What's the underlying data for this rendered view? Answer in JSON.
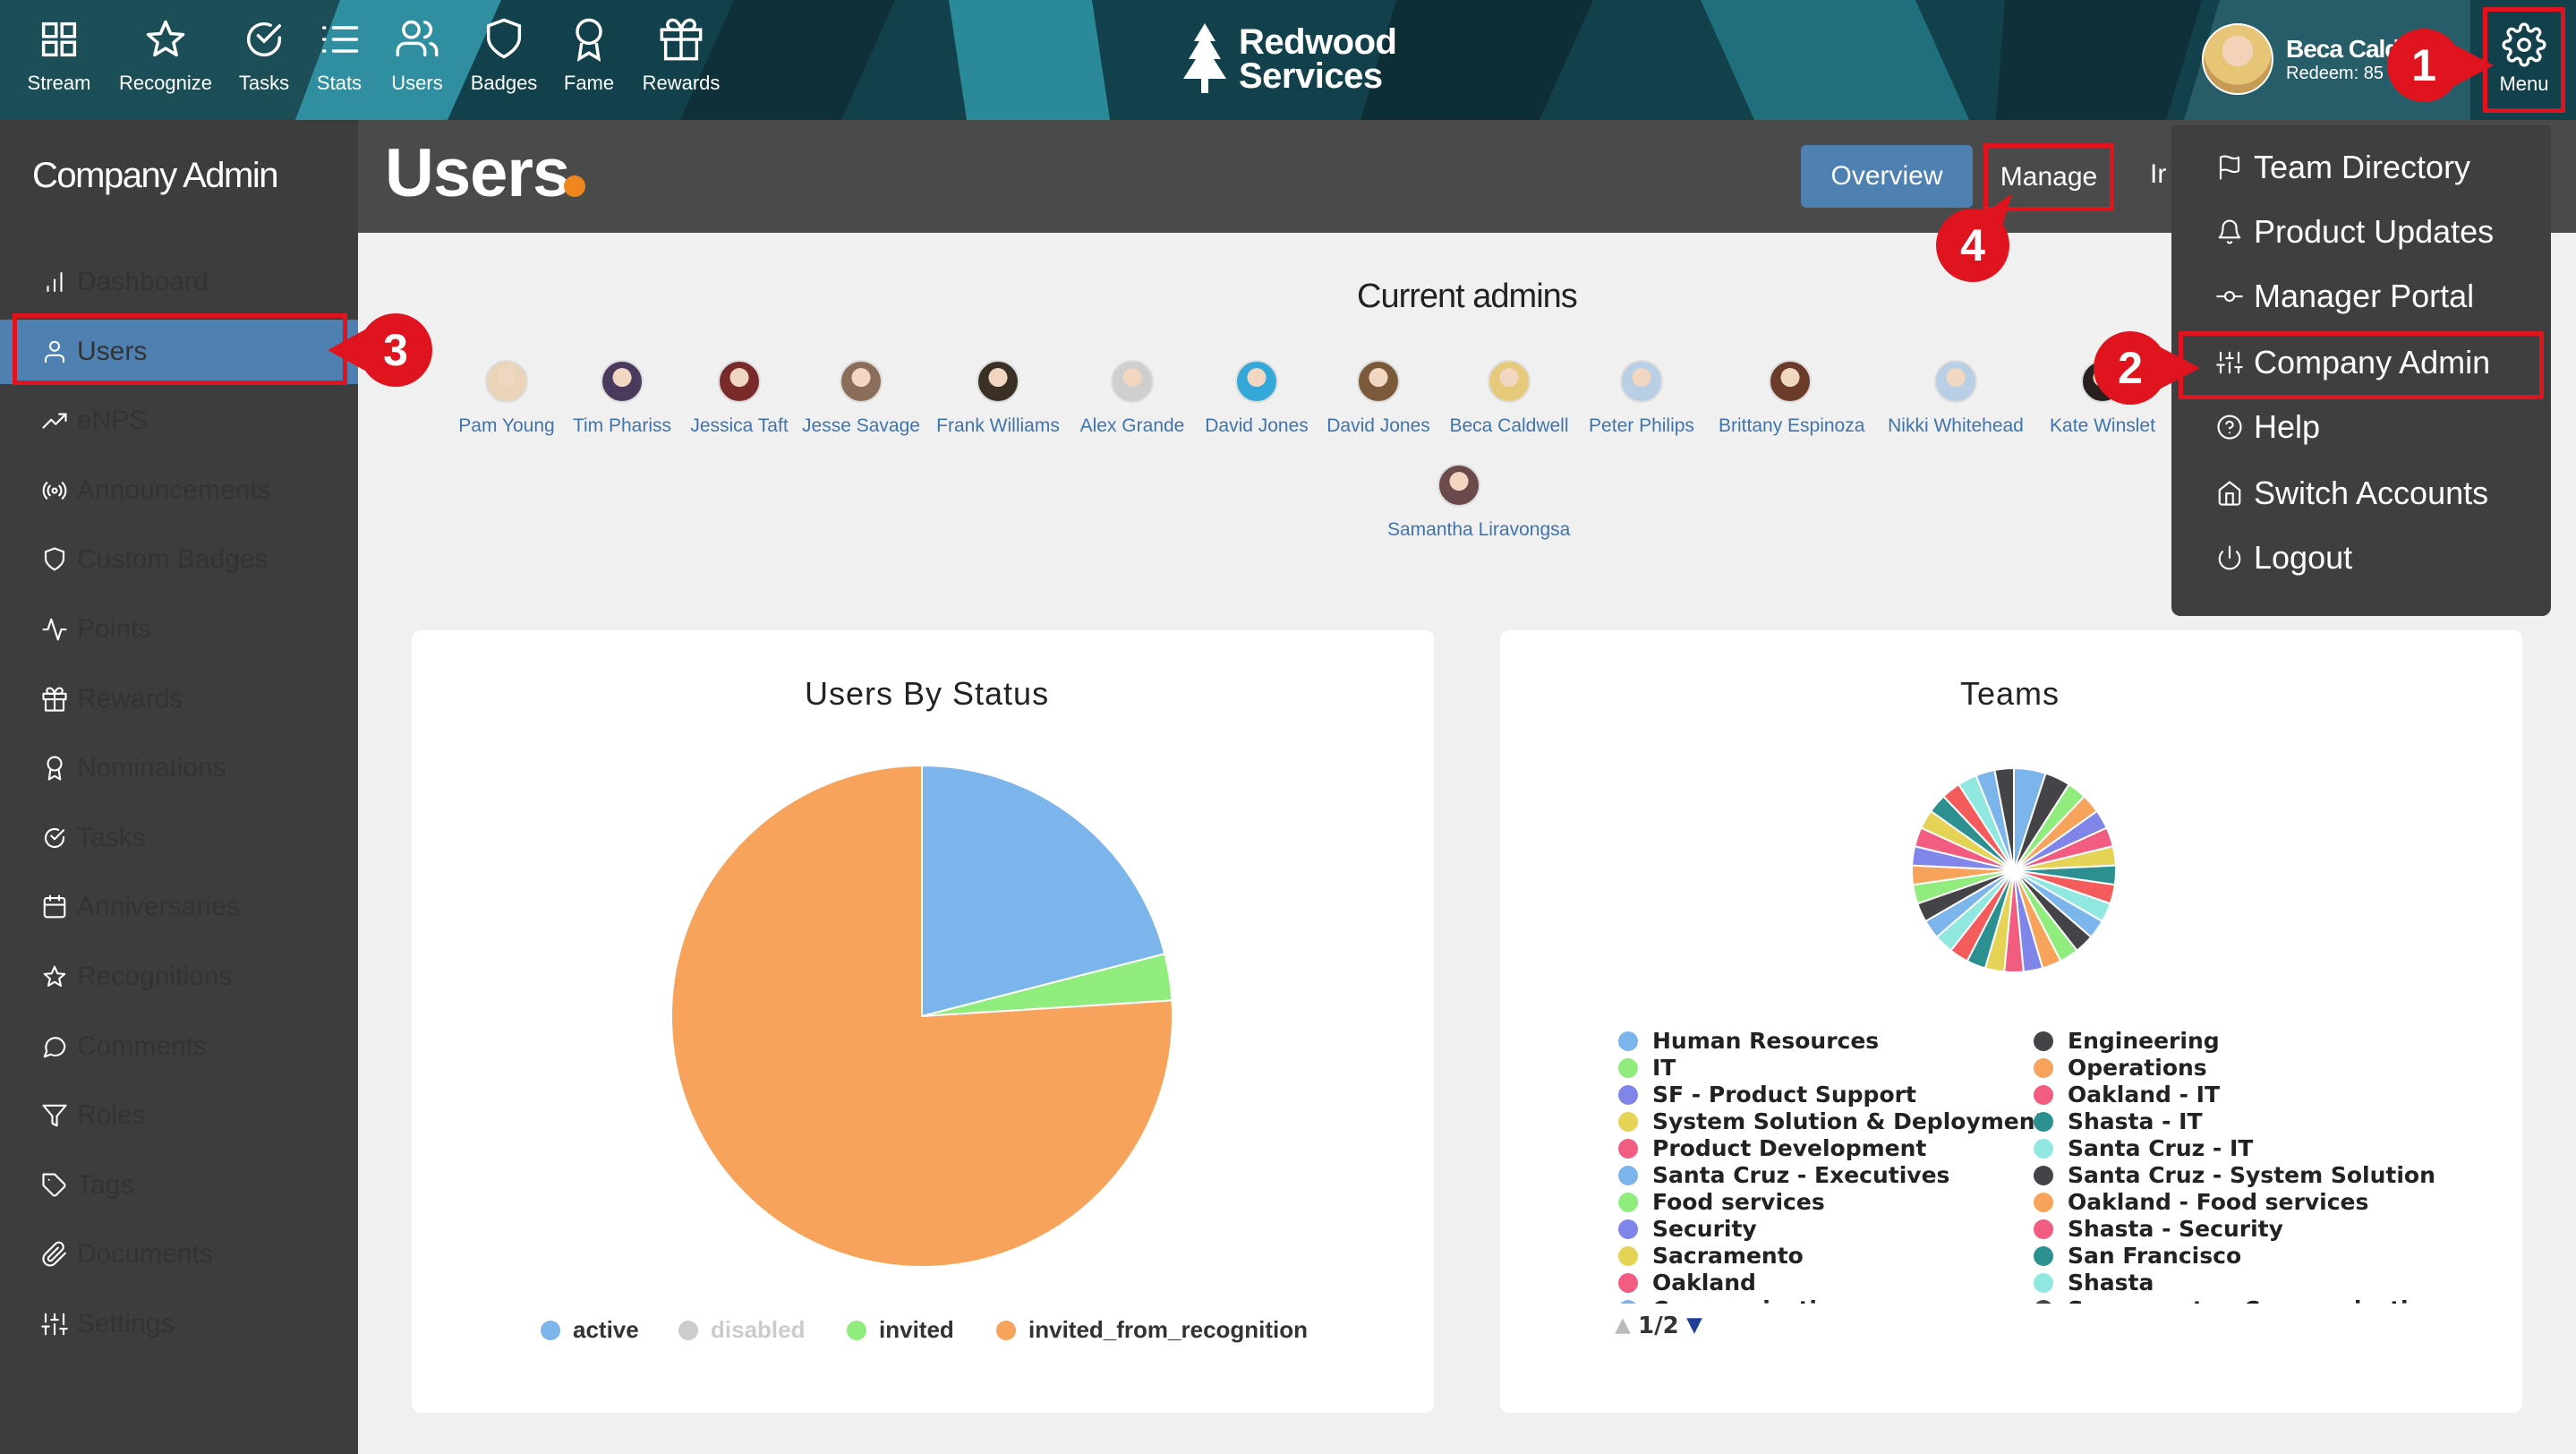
{
  "topbar": {
    "nav": [
      {
        "label": "Stream",
        "icon": "grid-icon"
      },
      {
        "label": "Recognize",
        "icon": "star-icon"
      },
      {
        "label": "Tasks",
        "icon": "check-circle-icon"
      },
      {
        "label": "Stats",
        "icon": "list-icon"
      },
      {
        "label": "Users",
        "icon": "users-icon"
      },
      {
        "label": "Badges",
        "icon": "shield-icon"
      },
      {
        "label": "Fame",
        "icon": "award-icon"
      },
      {
        "label": "Rewards",
        "icon": "gift-icon"
      }
    ],
    "brand_line1": "Redwood",
    "brand_line2": "Services",
    "user_name": "Beca Caldwell",
    "user_redeem": "Redeem: 85",
    "menu_label": "Menu"
  },
  "sidebar": {
    "title": "Company Admin",
    "items": [
      {
        "label": "Dashboard",
        "icon": "bar-chart-icon"
      },
      {
        "label": "Users",
        "icon": "user-icon",
        "active": true
      },
      {
        "label": "eNPS",
        "icon": "trend-icon"
      },
      {
        "label": "Announcements",
        "icon": "broadcast-icon"
      },
      {
        "label": "Custom Badges",
        "icon": "shield-icon"
      },
      {
        "label": "Points",
        "icon": "activity-icon"
      },
      {
        "label": "Rewards",
        "icon": "gift-icon"
      },
      {
        "label": "Nominations",
        "icon": "award-icon"
      },
      {
        "label": "Tasks",
        "icon": "check-circle-icon"
      },
      {
        "label": "Anniversaries",
        "icon": "calendar-icon"
      },
      {
        "label": "Recognitions",
        "icon": "star-icon"
      },
      {
        "label": "Comments",
        "icon": "message-icon"
      },
      {
        "label": "Roles",
        "icon": "filter-icon"
      },
      {
        "label": "Tags",
        "icon": "tag-icon"
      },
      {
        "label": "Documents",
        "icon": "paperclip-icon"
      },
      {
        "label": "Settings",
        "icon": "sliders-icon"
      }
    ]
  },
  "header": {
    "title": "Users",
    "tabs": {
      "overview": "Overview",
      "manage": "Manage",
      "more": "Ir"
    }
  },
  "admins": {
    "title": "Current admins",
    "people": [
      "Pam Young",
      "Tim Phariss",
      "Jessica Taft",
      "Jesse Savage",
      "Frank Williams",
      "Alex Grande",
      "David Jones",
      "David Jones",
      "Beca Caldwell",
      "Peter Philips",
      "Brittany Espinoza",
      "Nikki Whitehead",
      "Kate Winslet",
      "Samantha Liravongsa"
    ]
  },
  "menu": {
    "items": [
      {
        "label": "Team Directory",
        "icon": "flag-icon"
      },
      {
        "label": "Product Updates",
        "icon": "bell-icon"
      },
      {
        "label": "Manager Portal",
        "icon": "commit-icon"
      },
      {
        "label": "Company Admin",
        "icon": "sliders-icon"
      },
      {
        "label": "Help",
        "icon": "help-circle-icon"
      },
      {
        "label": "Switch Accounts",
        "icon": "home-icon"
      },
      {
        "label": "Logout",
        "icon": "power-icon"
      }
    ]
  },
  "annotations": [
    "1",
    "2",
    "3",
    "4"
  ],
  "colors": {
    "accent": "#4e80b1",
    "highlight": "#e0141e",
    "dot": "#f0871e",
    "sidebar": "#3d3d3d"
  },
  "chart_data": [
    {
      "type": "pie",
      "title": "Users By Status",
      "categories": [
        "active",
        "disabled",
        "invited",
        "invited_from_recognition"
      ],
      "values": [
        21,
        0,
        3,
        76
      ],
      "colors": [
        "#7cb5ec",
        "#cccccc",
        "#90ed7d",
        "#f7a35c"
      ],
      "legend": "bottom"
    },
    {
      "type": "pie",
      "title": "Teams",
      "legend_page": "1/2",
      "legend_left": [
        "Human Resources",
        "IT",
        "SF - Product Support",
        "System Solution & Deployment",
        "Product Development",
        "Santa Cruz - Executives",
        "Food services",
        "Security",
        "Sacramento",
        "Oakland",
        "Communications"
      ],
      "legend_right": [
        "Engineering",
        "Operations",
        "Oakland - IT",
        "Shasta - IT",
        "Santa Cruz - IT",
        "Santa Cruz - System Solution",
        "Oakland - Food services",
        "Shasta - Security",
        "San Francisco",
        "Shasta",
        "Sacramento - Communications"
      ],
      "legend_left_colors": [
        "#7cb5ec",
        "#90ed7d",
        "#8085e9",
        "#e4d354",
        "#f15c80",
        "#7cb5ec",
        "#90ed7d",
        "#8085e9",
        "#e4d354",
        "#f15c80",
        "#7cb5ec"
      ],
      "legend_right_colors": [
        "#434348",
        "#f7a35c",
        "#f15c80",
        "#2b908f",
        "#91e8e1",
        "#434348",
        "#f7a35c",
        "#f15c80",
        "#2b908f",
        "#91e8e1",
        "#434348"
      ],
      "values": [
        5,
        4,
        3,
        3,
        3,
        3,
        3,
        3,
        3,
        3,
        3,
        3,
        3,
        3,
        3,
        3,
        3,
        3,
        3,
        3,
        3,
        3,
        3,
        3,
        3,
        3,
        3,
        3,
        3,
        3,
        3,
        3
      ],
      "legend": "bottom"
    }
  ]
}
